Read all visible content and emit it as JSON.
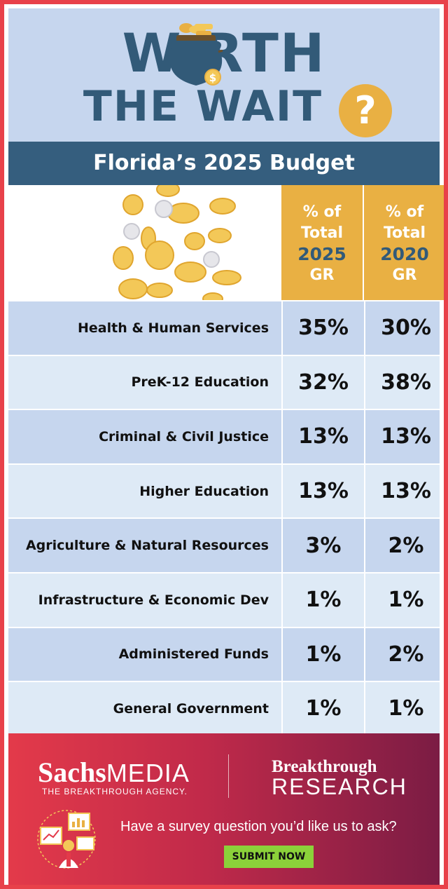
{
  "header": {
    "title_line1": "W  RTH",
    "title_line2": "THE WAIT",
    "question_mark": "?",
    "pot_dollar": "$",
    "subtitle": "Florida’s 2025 Budget"
  },
  "table": {
    "columns": [
      {
        "line1": "% of",
        "line2": "Total",
        "year": "2025",
        "line4": "GR"
      },
      {
        "line1": "% of",
        "line2": "Total",
        "year": "2020",
        "line4": "GR"
      }
    ],
    "rows": [
      {
        "label": "Health & Human Services",
        "v2025": "35%",
        "v2020": "30%"
      },
      {
        "label": "PreK-12 Education",
        "v2025": "32%",
        "v2020": "38%"
      },
      {
        "label": "Criminal & Civil Justice",
        "v2025": "13%",
        "v2020": "13%"
      },
      {
        "label": "Higher Education",
        "v2025": "13%",
        "v2020": "13%"
      },
      {
        "label": "Agriculture & Natural Resources",
        "v2025": "3%",
        "v2020": "2%"
      },
      {
        "label": "Infrastructure & Economic Dev",
        "v2025": "1%",
        "v2020": "1%"
      },
      {
        "label": "Administered Funds",
        "v2025": "1%",
        "v2020": "2%"
      },
      {
        "label": "General Government",
        "v2025": "1%",
        "v2020": "1%"
      }
    ]
  },
  "footer": {
    "brand_sachs": "Sachs",
    "brand_media": "MEDIA",
    "tagline": "THE BREAKTHROUGH AGENCY.",
    "research_line1": "Breakthrough",
    "research_line2": "RESEARCH",
    "prompt": "Have a survey question you’d like us to ask?",
    "button_label": "SUBMIT NOW"
  },
  "colors": {
    "frame": "#e8414a",
    "navy": "#325a78",
    "light_blue": "#c6d6ee",
    "pale_blue": "#deeaf6",
    "gold": "#e9b043",
    "button_green": "#8bd13a"
  },
  "icons": [
    "coin-pot-icon",
    "falling-coins-icon",
    "survey-analytics-icon"
  ]
}
